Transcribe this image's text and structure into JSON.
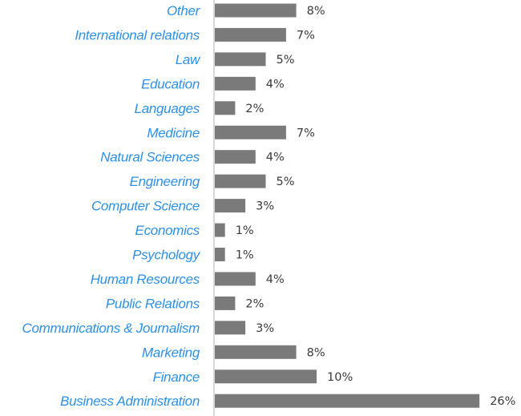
{
  "chart_data": {
    "type": "bar",
    "orientation": "horizontal",
    "categories": [
      "Other",
      "International relations",
      "Law",
      "Education",
      "Languages",
      "Medicine",
      "Natural Sciences",
      "Engineering",
      "Computer Science",
      "Economics",
      "Psychology",
      "Human Resources",
      "Public Relations",
      "Communications & Journalism",
      "Marketing",
      "Finance",
      "Business Administration"
    ],
    "values": [
      8,
      7,
      5,
      4,
      2,
      7,
      4,
      5,
      3,
      1,
      1,
      4,
      2,
      3,
      8,
      10,
      26
    ],
    "value_labels": [
      "8%",
      "7%",
      "5%",
      "4%",
      "2%",
      "7%",
      "4%",
      "5%",
      "3%",
      "1%",
      "1%",
      "4%",
      "2%",
      "3%",
      "8%",
      "10%",
      "26%"
    ],
    "xlim": [
      0,
      26
    ],
    "grid": false,
    "legend": "none",
    "colors": {
      "bar": "#7a7a7a",
      "category_label": "#2e8fe6",
      "value_label": "#3a3a3a",
      "axis": "#b0b0b0"
    }
  }
}
